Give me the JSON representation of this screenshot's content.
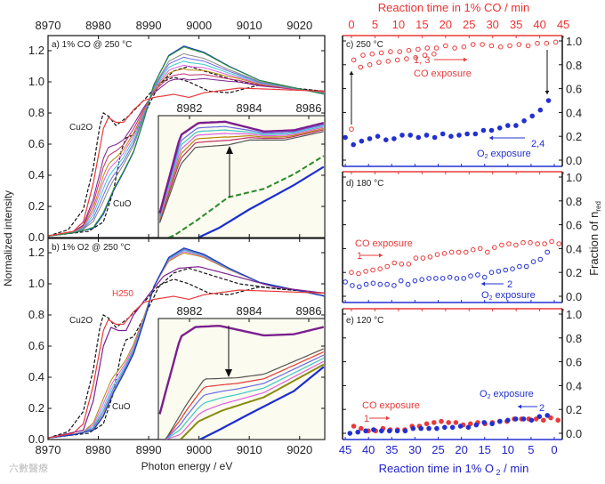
{
  "chart_data": [
    {
      "type": "line",
      "panel": "a",
      "title": "a) 1% CO @ 250 °C",
      "xlabel": "Photon energy / eV",
      "ylabel": "Normalized intensity",
      "xlim": [
        8970,
        9025
      ],
      "ylim": [
        0,
        1.28
      ],
      "xticks": [
        "8970",
        "8980",
        "8990",
        "9000",
        "9010",
        "9020"
      ],
      "yticks": [
        "0.0",
        "0.2",
        "0.4",
        "0.6",
        "0.8",
        "1.0",
        "1.2"
      ],
      "annotations": [
        "Cu2O",
        "CuO"
      ],
      "reference_cu2o": [
        [
          8970,
          0.01
        ],
        [
          8974,
          0.05
        ],
        [
          8977,
          0.18
        ],
        [
          8979,
          0.45
        ],
        [
          8980.3,
          0.72
        ],
        [
          8981,
          0.8
        ],
        [
          8982,
          0.78
        ],
        [
          8983.5,
          0.72
        ],
        [
          8986,
          0.78
        ],
        [
          8989,
          0.88
        ],
        [
          8992,
          0.99
        ],
        [
          8995,
          1.03
        ],
        [
          8998,
          1.0
        ],
        [
          9002,
          0.94
        ],
        [
          9006,
          0.93
        ],
        [
          9012,
          0.98
        ],
        [
          9025,
          0.94
        ]
      ],
      "reference_cuo": [
        [
          8970,
          0.01
        ],
        [
          8978,
          0.04
        ],
        [
          8981,
          0.1
        ],
        [
          8983,
          0.3
        ],
        [
          8984.5,
          0.55
        ],
        [
          8985.5,
          0.64
        ],
        [
          8987,
          0.66
        ],
        [
          8989,
          0.78
        ],
        [
          8992,
          0.98
        ],
        [
          8995,
          1.07
        ],
        [
          8998,
          1.1
        ],
        [
          9002,
          1.06
        ],
        [
          9008,
          1.0
        ],
        [
          9015,
          0.97
        ],
        [
          9025,
          0.94
        ]
      ],
      "reduced_end": [
        [
          8970,
          0.01
        ],
        [
          8975,
          0.04
        ],
        [
          8977,
          0.1
        ],
        [
          8979,
          0.35
        ],
        [
          8981,
          0.7
        ],
        [
          8982,
          0.77
        ],
        [
          8983.5,
          0.74
        ],
        [
          8985,
          0.74
        ],
        [
          8987,
          0.82
        ],
        [
          8989,
          0.88
        ],
        [
          8991,
          0.9
        ],
        [
          8995,
          0.92
        ],
        [
          8998,
          0.9
        ],
        [
          9001,
          0.93
        ],
        [
          9008,
          0.96
        ],
        [
          9025,
          0.94
        ]
      ],
      "oxidized_end": [
        [
          8970,
          0.01
        ],
        [
          8975,
          0.03
        ],
        [
          8979,
          0.06
        ],
        [
          8981,
          0.15
        ],
        [
          8983,
          0.3
        ],
        [
          8985,
          0.42
        ],
        [
          8987,
          0.55
        ],
        [
          8989,
          0.75
        ],
        [
          8991,
          0.98
        ],
        [
          8994,
          1.17
        ],
        [
          8997,
          1.23
        ],
        [
          9001,
          1.19
        ],
        [
          9006,
          1.1
        ],
        [
          9012,
          1.01
        ],
        [
          9025,
          0.92
        ]
      ],
      "intermediate_fractions": [
        0.35,
        0.45,
        0.55,
        0.62,
        0.7,
        0.78,
        0.85
      ],
      "inset": {
        "xlim": [
          8981,
          8986.5
        ],
        "xticks": [
          "8982",
          "8984",
          "8986"
        ],
        "top": [
          [
            8981,
            0.2
          ],
          [
            8981.7,
            0.84
          ],
          [
            8982.3,
            0.94
          ],
          [
            8983.2,
            0.95
          ],
          [
            8984.5,
            0.87
          ],
          [
            8985.5,
            0.88
          ],
          [
            8986.5,
            0.94
          ]
        ],
        "bottom": [
          [
            8981,
            0.12
          ],
          [
            8981.7,
            0.6
          ],
          [
            8982.2,
            0.74
          ],
          [
            8983.3,
            0.76
          ],
          [
            8984,
            0.8
          ],
          [
            8985.2,
            0.8
          ],
          [
            8986.5,
            0.87
          ]
        ],
        "intermediate_fractions": [
          0.2,
          0.35,
          0.5,
          0.65,
          0.8
        ],
        "dashed_green": [
          [
            8980.8,
            -0.05
          ],
          [
            8981.5,
            0.02
          ],
          [
            8982.3,
            0.15
          ],
          [
            8983.3,
            0.33
          ],
          [
            8984.5,
            0.4
          ],
          [
            8985.5,
            0.52
          ],
          [
            8986.5,
            0.67
          ]
        ],
        "blue": [
          [
            8982.3,
            0
          ],
          [
            8983,
            0.08
          ],
          [
            8984,
            0.23
          ],
          [
            8985.5,
            0.43
          ],
          [
            8986.5,
            0.58
          ]
        ]
      }
    },
    {
      "type": "line",
      "panel": "b",
      "title": "b) 1% O2 @ 250 °C",
      "xlabel": "Photon energy / eV",
      "xlim": [
        8970,
        9025
      ],
      "ylim": [
        0,
        1.28
      ],
      "xticks": [
        "8970",
        "8980",
        "8990",
        "9000",
        "9010",
        "9020"
      ],
      "yticks": [
        "0.0",
        "0.2",
        "0.4",
        "0.6",
        "0.8",
        "1.0",
        "1.2"
      ],
      "annotations": [
        "Cu2O",
        "CuO",
        "H250"
      ],
      "purple_curve": [
        [
          8970,
          0.01
        ],
        [
          8977,
          0.06
        ],
        [
          8979,
          0.25
        ],
        [
          8981,
          0.6
        ],
        [
          8982.5,
          0.72
        ],
        [
          8984,
          0.7
        ],
        [
          8985.5,
          0.7
        ],
        [
          8987,
          0.8
        ],
        [
          8990,
          0.93
        ],
        [
          8993,
          1.05
        ],
        [
          8996,
          1.1
        ],
        [
          9000,
          1.11
        ],
        [
          9006,
          1.06
        ],
        [
          9015,
          0.98
        ],
        [
          9025,
          0.94
        ]
      ],
      "intermediate_fractions": [
        0.75,
        0.82,
        0.88,
        0.93,
        0.97,
        1.0
      ],
      "inset": {
        "xlim": [
          8981,
          8986.5
        ],
        "xticks": [
          "8982",
          "8984",
          "8986"
        ],
        "top": [
          [
            8981,
            0.21
          ],
          [
            8981.7,
            0.85
          ],
          [
            8982.2,
            0.93
          ],
          [
            8983,
            0.94
          ],
          [
            8984.5,
            0.86
          ],
          [
            8985.5,
            0.87
          ],
          [
            8986.5,
            0.93
          ]
        ],
        "upper": [
          [
            8981.2,
            0
          ],
          [
            8981.9,
            0.29
          ],
          [
            8982.5,
            0.5
          ],
          [
            8983.6,
            0.51
          ],
          [
            8984.5,
            0.54
          ],
          [
            8986.5,
            0.75
          ]
        ],
        "lower": [
          [
            8981.7,
            0
          ],
          [
            8982.3,
            0.15
          ],
          [
            8983.1,
            0.24
          ],
          [
            8984.5,
            0.35
          ],
          [
            8986.5,
            0.62
          ]
        ],
        "intermediate_fractions": [
          0.2,
          0.4,
          0.6,
          0.8
        ],
        "blue": [
          [
            8982.35,
            0
          ],
          [
            8983,
            0.08
          ],
          [
            8984,
            0.21
          ],
          [
            8985.5,
            0.4
          ],
          [
            8986.5,
            0.6
          ]
        ]
      }
    },
    {
      "type": "scatter",
      "panel": "c",
      "title": "c) 250 °C",
      "top_xlabel": "Reaction time in 1% CO / min",
      "bottom_xlabel": "Reaction time in 1% O 2 / min",
      "ylabel": "Fraction of n_red",
      "top_xticks": [
        "0",
        "5",
        "10",
        "15",
        "20",
        "25",
        "30",
        "35",
        "40",
        "45"
      ],
      "bottom_xticks": [
        "45",
        "40",
        "35",
        "30",
        "25",
        "20",
        "15",
        "10",
        "5",
        "0"
      ],
      "yticks": [
        "0.0",
        "0.2",
        "0.4",
        "0.6",
        "0.8",
        "1.0"
      ],
      "ylim": [
        0,
        1.0
      ],
      "co_series_1": {
        "t_start": 0.5,
        "t_step": 1.95,
        "values": [
          0.84,
          0.88,
          0.89,
          0.9,
          0.91,
          0.91,
          0.92,
          0.93,
          0.94,
          0.94,
          0.96,
          0.94,
          0.95,
          0.97,
          0.97,
          0.96,
          0.95,
          0.96,
          0.97,
          0.96,
          0.98,
          0.98,
          0.99
        ]
      },
      "co_series_3": {
        "t_start": 0.0,
        "t_step": 1.95,
        "values": [
          0.26,
          0.78,
          0.8,
          0.82,
          0.83,
          0.84,
          0.85,
          0.86,
          0.88,
          0.89
        ]
      },
      "o2_series": {
        "t_start": 45,
        "t_step": -1.75,
        "values": [
          0.19,
          0.13,
          0.16,
          0.18,
          0.2,
          0.17,
          0.18,
          0.21,
          0.21,
          0.19,
          0.21,
          0.19,
          0.22,
          0.2,
          0.21,
          0.22,
          0.22,
          0.25,
          0.25,
          0.27,
          0.29,
          0.29,
          0.33,
          0.37,
          0.42,
          0.5
        ]
      },
      "annotations": {
        "co_label": "CO exposure",
        "co_runs": "1, 3",
        "o2_label": "O2 exposure",
        "o2_runs": "2,4"
      }
    },
    {
      "type": "scatter",
      "panel": "d",
      "title": "d) 180 °C",
      "yticks": [
        "0.0",
        "0.2",
        "0.4",
        "0.6",
        "0.8",
        "1.0"
      ],
      "ylim": [
        0,
        1.0
      ],
      "co_series": {
        "t_start": 0.0,
        "t_step": 1.52,
        "values": [
          0.2,
          0.19,
          0.21,
          0.22,
          0.23,
          0.25,
          0.28,
          0.27,
          0.27,
          0.32,
          0.32,
          0.33,
          0.35,
          0.36,
          0.37,
          0.37,
          0.37,
          0.39,
          0.4,
          0.37,
          0.41,
          0.43,
          0.44,
          0.43,
          0.45,
          0.45,
          0.44,
          0.44,
          0.46,
          0.44
        ]
      },
      "o2_series": {
        "t_start": 45,
        "t_step": -1.5,
        "values": [
          0.12,
          0.09,
          0.08,
          0.1,
          0.11,
          0.1,
          0.1,
          0.09,
          0.13,
          0.1,
          0.13,
          0.14,
          0.15,
          0.15,
          0.15,
          0.16,
          0.15,
          0.15,
          0.17,
          0.18,
          0.16,
          0.2,
          0.21,
          0.22,
          0.23,
          0.25,
          0.25,
          0.29,
          0.31,
          0.37
        ]
      },
      "annotations": {
        "co_label": "CO exposure",
        "co_runs": "1",
        "o2_label": "O2 exposure",
        "o2_runs": "2"
      }
    },
    {
      "type": "scatter",
      "panel": "e",
      "title": "e) 120 °C",
      "yticks": [
        "0.0",
        "0.2",
        "0.4",
        "0.6",
        "0.8",
        "1.0"
      ],
      "ylim": [
        0,
        1.0
      ],
      "co_series": {
        "t_start": 0.5,
        "t_step": 1.55,
        "values": [
          0.06,
          0.04,
          0.02,
          0.02,
          0.04,
          0.03,
          0.03,
          0.03,
          0.06,
          0.06,
          0.08,
          0.09,
          0.1,
          0.09,
          0.09,
          0.07,
          0.08,
          0.09,
          0.08,
          0.09,
          0.1,
          0.1,
          0.12,
          0.12,
          0.12,
          0.12,
          0.11,
          0.13,
          0.11
        ]
      },
      "o2_series": {
        "t_start": 44,
        "t_step": -1.7,
        "values": [
          0.0,
          0.01,
          0.02,
          0.03,
          0.02,
          0.02,
          0.02,
          0.02,
          0.04,
          0.04,
          0.04,
          0.04,
          0.05,
          0.05,
          0.06,
          0.05,
          0.07,
          0.09,
          0.08,
          0.1,
          0.11,
          0.12,
          0.12,
          0.11,
          0.14,
          0.15
        ]
      },
      "annotations": {
        "co_label": "CO exposure",
        "co_runs": "1",
        "o2_label": "O2 exposure",
        "o2_runs": "2"
      }
    }
  ],
  "labels": {
    "panel_a": "a) 1% CO @ 250 °C",
    "panel_b_pre": "b) 1% O",
    "panel_b_sub": "2",
    "panel_b_post": " @ 250 °C",
    "cu2o_main": "Cu",
    "cu2o_sub": "2",
    "cu2o_tail": "O",
    "cuo": "CuO",
    "h250": "H250",
    "ylabel_left": "Normalized intensity",
    "xlabel_left": "Photon energy / eV",
    "top_xlabel": "Reaction time in 1% CO / min",
    "bottom_xlabel_pre": "Reaction time in 1% O",
    "bottom_xlabel_sub": " 2",
    "bottom_xlabel_post": " / min",
    "ylabel_right_pre": "Fraction of n",
    "ylabel_right_sub": "red",
    "panel_c": "c) 250 °C",
    "panel_d": "d) 180 °C",
    "panel_e": "e) 120 °C",
    "co_exposure": "CO exposure",
    "o2_pre": "O",
    "o2_sub": "2",
    "o2_post": " exposure",
    "runs_13": "1, 3",
    "runs_24": "2,4",
    "run_1": "1",
    "run_2": "2",
    "watermark": "六數醫療"
  },
  "colors": {
    "co": "#e83a3a",
    "o2": "#2230d0",
    "ref": "#111111"
  }
}
